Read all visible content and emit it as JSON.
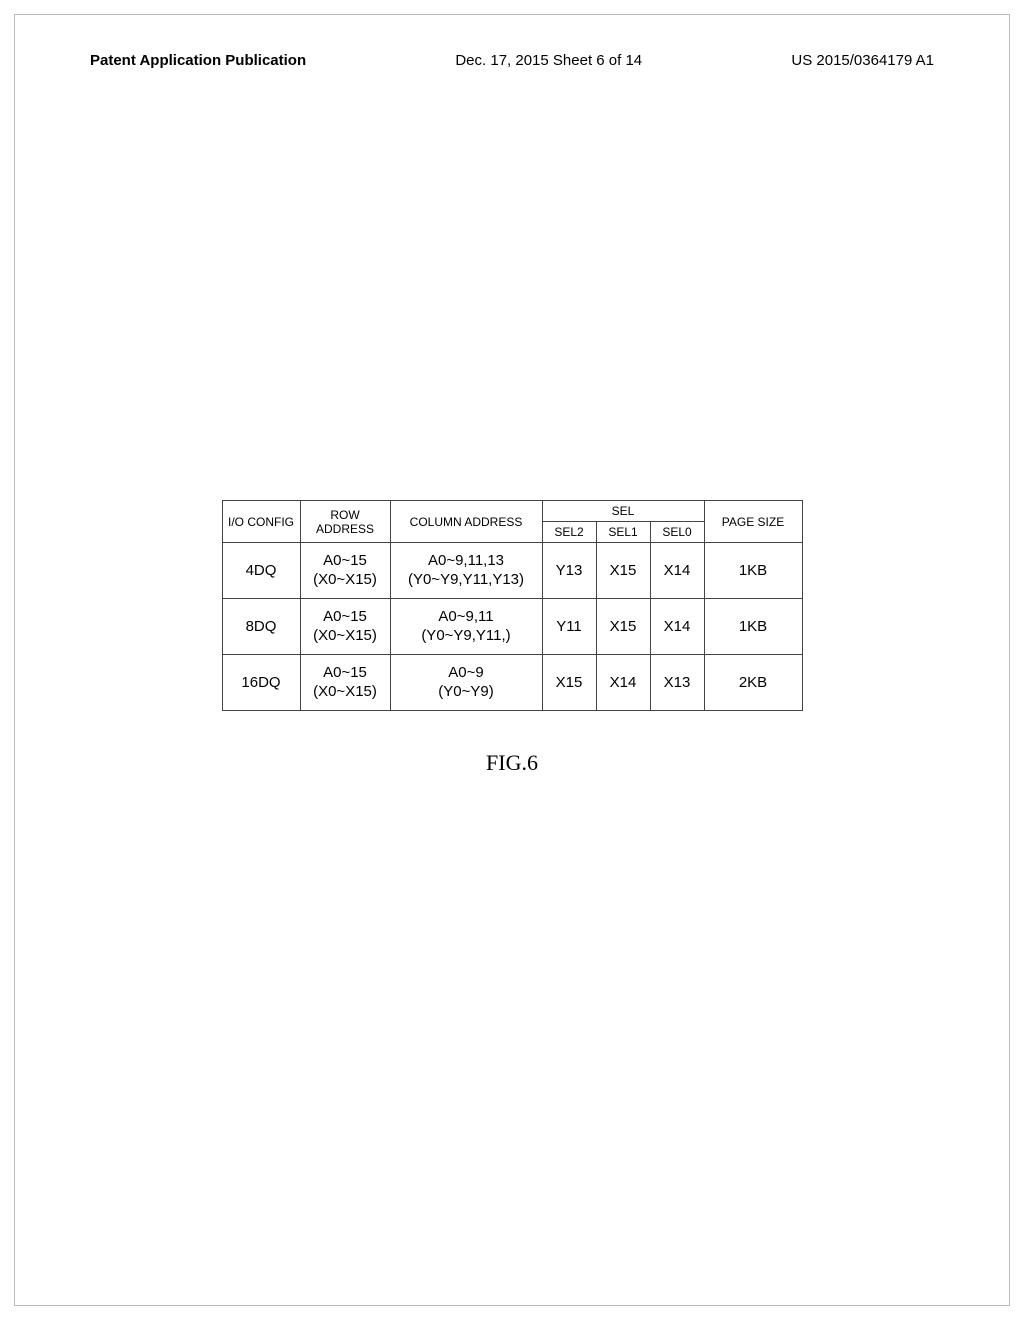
{
  "header": {
    "pub_title": "Patent Application Publication",
    "date_sheet": "Dec. 17, 2015  Sheet 6 of 14",
    "pub_number": "US 2015/0364179 A1"
  },
  "table": {
    "headers": {
      "io_config": "I/O CONFIG",
      "row_address": "ROW ADDRESS",
      "column_address": "COLUMN ADDRESS",
      "sel_group": "SEL",
      "sel2": "SEL2",
      "sel1": "SEL1",
      "sel0": "SEL0",
      "page_size": "PAGE SIZE"
    },
    "rows": [
      {
        "io": "4DQ",
        "row_l1": "A0~15",
        "row_l2": "(X0~X15)",
        "col_l1": "A0~9,11,13",
        "col_l2": "(Y0~Y9,Y11,Y13)",
        "sel2": "Y13",
        "sel1": "X15",
        "sel0": "X14",
        "page": "1KB"
      },
      {
        "io": "8DQ",
        "row_l1": "A0~15",
        "row_l2": "(X0~X15)",
        "col_l1": "A0~9,11",
        "col_l2": "(Y0~Y9,Y11,)",
        "sel2": "Y11",
        "sel1": "X15",
        "sel0": "X14",
        "page": "1KB"
      },
      {
        "io": "16DQ",
        "row_l1": "A0~15",
        "row_l2": "(X0~X15)",
        "col_l1": "A0~9",
        "col_l2": "(Y0~Y9)",
        "sel2": "X15",
        "sel1": "X14",
        "sel0": "X13",
        "page": "2KB"
      }
    ]
  },
  "figure_caption": "FIG.6"
}
